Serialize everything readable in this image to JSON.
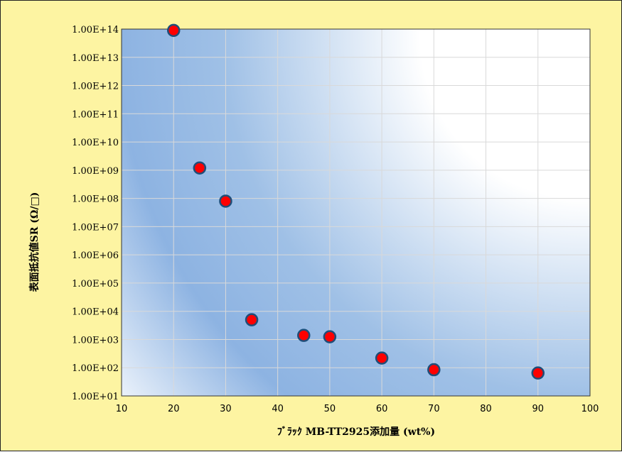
{
  "chart_data": {
    "type": "scatter",
    "xlabel": "ﾌﾞﾗｯｸ MB-TT2925添加量 (wt%)",
    "ylabel": "表面抵抗値SR (Ω/□)",
    "x_scale": "linear",
    "y_scale": "log",
    "xlim": [
      10,
      100
    ],
    "ylim": [
      10,
      100000000000000
    ],
    "x_ticks": [
      "10",
      "20",
      "30",
      "40",
      "50",
      "60",
      "70",
      "80",
      "90",
      "100"
    ],
    "y_ticks": [
      "1.00E+01",
      "1.00E+02",
      "1.00E+03",
      "1.00E+04",
      "1.00E+05",
      "1.00E+06",
      "1.00E+07",
      "1.00E+08",
      "1.00E+09",
      "1.00E+10",
      "1.00E+11",
      "1.00E+12",
      "1.00E+13",
      "1.00E+14"
    ],
    "grid": true,
    "legend": "none",
    "marker_color": "#ff0000",
    "marker_edge_color": "#1f4e79",
    "points": [
      {
        "x": 20,
        "y": 90000000000000
      },
      {
        "x": 25,
        "y": 1200000000
      },
      {
        "x": 30,
        "y": 80000000
      },
      {
        "x": 35,
        "y": 5000
      },
      {
        "x": 45,
        "y": 1400
      },
      {
        "x": 50,
        "y": 1250
      },
      {
        "x": 60,
        "y": 220
      },
      {
        "x": 70,
        "y": 85
      },
      {
        "x": 90,
        "y": 65
      }
    ]
  },
  "colors": {
    "frame_background": "#fdf4a2",
    "plot_gradient_dark": "#8db3e2",
    "plot_gradient_light": "#ffffff",
    "grid": "#d9d9d9"
  }
}
